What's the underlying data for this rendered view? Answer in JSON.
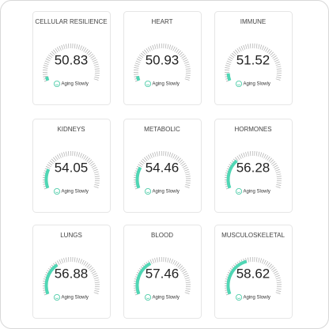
{
  "gauge": {
    "min": 50,
    "max": 70
  },
  "cards": [
    {
      "title": "CELLULAR RESILIENCE",
      "value": 50.83,
      "status": "Aging Slowly"
    },
    {
      "title": "HEART",
      "value": 50.93,
      "status": "Aging Slowly"
    },
    {
      "title": "IMMUNE",
      "value": 51.52,
      "status": "Aging Slowly"
    },
    {
      "title": "KIDNEYS",
      "value": 54.05,
      "status": "Aging Slowly"
    },
    {
      "title": "METABOLIC",
      "value": 54.46,
      "status": "Aging Slowly"
    },
    {
      "title": "HORMONES",
      "value": 56.28,
      "status": "Aging Slowly"
    },
    {
      "title": "LUNGS",
      "value": 56.88,
      "status": "Aging Slowly"
    },
    {
      "title": "BLOOD",
      "value": 57.46,
      "status": "Aging Slowly"
    },
    {
      "title": "MUSCULOSKELETAL",
      "value": 58.62,
      "status": "Aging Slowly"
    }
  ]
}
